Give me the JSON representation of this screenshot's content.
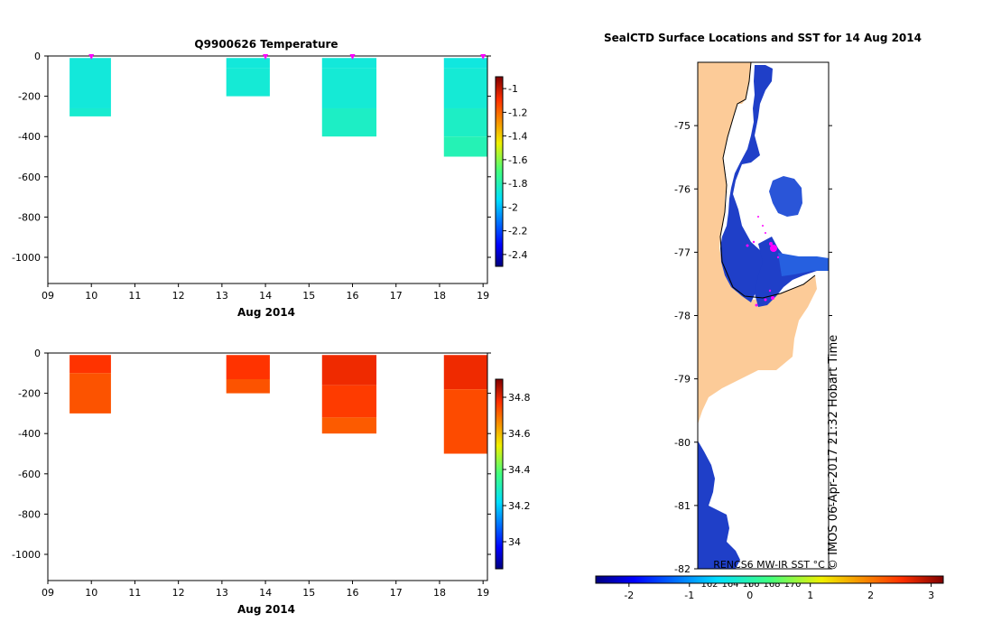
{
  "chart_data": [
    {
      "type": "heatmap",
      "title": "Q9900626  Temperature",
      "xlabel": "Aug 2014",
      "x_ticks": [
        "09",
        "10",
        "11",
        "12",
        "13",
        "14",
        "15",
        "16",
        "17",
        "18",
        "19"
      ],
      "xlim": [
        9,
        19.1
      ],
      "ylim": [
        -1130,
        0
      ],
      "y_ticks": [
        {
          "value": 0,
          "label": "0"
        },
        {
          "value": -200,
          "label": "-200"
        },
        {
          "value": -400,
          "label": "-400"
        },
        {
          "value": -600,
          "label": "-600"
        },
        {
          "value": -800,
          "label": "-800"
        },
        {
          "value": -1000,
          "label": "-1000"
        }
      ],
      "colorbar": {
        "min": -2.5,
        "max": -0.9,
        "ticks": [
          {
            "value": -1,
            "label": "-1"
          },
          {
            "value": -1.2,
            "label": "-1.2"
          },
          {
            "value": -1.4,
            "label": "-1.4"
          },
          {
            "value": -1.6,
            "label": "-1.6"
          },
          {
            "value": -1.8,
            "label": "-1.8"
          },
          {
            "value": -2,
            "label": "-2"
          },
          {
            "value": -2.2,
            "label": "-2.2"
          },
          {
            "value": -2.4,
            "label": "-2.4"
          }
        ]
      },
      "profiles": [
        {
          "x0": 9.5,
          "x1": 10.45,
          "cells": [
            {
              "top": -10,
              "bottom": -260,
              "value": -1.87
            },
            {
              "top": -260,
              "bottom": -300,
              "value": -1.85
            }
          ]
        },
        {
          "x0": 13.1,
          "x1": 14.1,
          "cells": [
            {
              "top": -10,
              "bottom": -60,
              "value": -1.87
            },
            {
              "top": -60,
              "bottom": -200,
              "value": -1.86
            }
          ]
        },
        {
          "x0": 15.3,
          "x1": 16.55,
          "cells": [
            {
              "top": -10,
              "bottom": -60,
              "value": -1.87
            },
            {
              "top": -60,
              "bottom": -260,
              "value": -1.86
            },
            {
              "top": -260,
              "bottom": -400,
              "value": -1.83
            }
          ]
        },
        {
          "x0": 18.1,
          "x1": 19.1,
          "cells": [
            {
              "top": -10,
              "bottom": -60,
              "value": -1.88
            },
            {
              "top": -60,
              "bottom": -260,
              "value": -1.86
            },
            {
              "top": -260,
              "bottom": -400,
              "value": -1.83
            },
            {
              "top": -400,
              "bottom": -500,
              "value": -1.8
            }
          ]
        }
      ],
      "surface_markers": [
        10,
        14,
        16,
        19
      ]
    },
    {
      "type": "heatmap",
      "title": "",
      "xlabel": "Aug 2014",
      "x_ticks": [
        "09",
        "10",
        "11",
        "12",
        "13",
        "14",
        "15",
        "16",
        "17",
        "18",
        "19"
      ],
      "xlim": [
        9,
        19.1
      ],
      "ylim": [
        -1130,
        0
      ],
      "y_ticks": [
        {
          "value": 0,
          "label": "0"
        },
        {
          "value": -200,
          "label": "-200"
        },
        {
          "value": -400,
          "label": "-400"
        },
        {
          "value": -600,
          "label": "-600"
        },
        {
          "value": -800,
          "label": "-800"
        },
        {
          "value": -1000,
          "label": "-1000"
        }
      ],
      "colorbar": {
        "min": 33.85,
        "max": 34.9,
        "ticks": [
          {
            "value": 34.8,
            "label": "34.8"
          },
          {
            "value": 34.6,
            "label": "34.6"
          },
          {
            "value": 34.4,
            "label": "34.4"
          },
          {
            "value": 34.2,
            "label": "34.2"
          },
          {
            "value": 34,
            "label": "34"
          }
        ]
      },
      "profiles": [
        {
          "x0": 9.5,
          "x1": 10.45,
          "cells": [
            {
              "top": -10,
              "bottom": -100,
              "value": 34.77
            },
            {
              "top": -100,
              "bottom": -300,
              "value": 34.73
            }
          ]
        },
        {
          "x0": 13.1,
          "x1": 14.1,
          "cells": [
            {
              "top": -10,
              "bottom": -130,
              "value": 34.77
            },
            {
              "top": -130,
              "bottom": -200,
              "value": 34.73
            }
          ]
        },
        {
          "x0": 15.3,
          "x1": 16.55,
          "cells": [
            {
              "top": -10,
              "bottom": -160,
              "value": 34.79
            },
            {
              "top": -160,
              "bottom": -320,
              "value": 34.76
            },
            {
              "top": -320,
              "bottom": -400,
              "value": 34.72
            }
          ]
        },
        {
          "x0": 18.1,
          "x1": 19.1,
          "cells": [
            {
              "top": -10,
              "bottom": -180,
              "value": 34.79
            },
            {
              "top": -180,
              "bottom": -500,
              "value": 34.74
            }
          ]
        }
      ],
      "surface_markers": []
    },
    {
      "type": "heatmap",
      "title": "SealCTD Surface Locations and SST for 14 Aug 2014",
      "ylim": [
        -82,
        -74
      ],
      "y_ticks": [
        {
          "value": -75,
          "label": "-75"
        },
        {
          "value": -76,
          "label": "-76"
        },
        {
          "value": -77,
          "label": "-77"
        },
        {
          "value": -78,
          "label": "-78"
        },
        {
          "value": -79,
          "label": "-79"
        },
        {
          "value": -80,
          "label": "-80"
        },
        {
          "value": -81,
          "label": "-81"
        },
        {
          "value": -82,
          "label": "-82"
        }
      ],
      "x_ticks": [
        "162",
        "164",
        "166",
        "168",
        "170"
      ],
      "map_caption": "RENCS6 MW-IR SST °C",
      "credit": "© IMOS 06-Apr-2017 21:32 Hobart Time",
      "colorbar": {
        "min": -2.55,
        "max": 3.2,
        "ticks": [
          {
            "value": -2,
            "label": "-2"
          },
          {
            "value": -1,
            "label": "-1"
          },
          {
            "value": 0,
            "label": "0"
          },
          {
            "value": 1,
            "label": "1"
          },
          {
            "value": 2,
            "label": "2"
          },
          {
            "value": 3,
            "label": "3"
          }
        ]
      }
    }
  ],
  "colors": {
    "land": "#fccb98",
    "sea_ice": "#ffffff",
    "sst_cold": "#1a3fc0",
    "marker": "#ff00ff"
  }
}
